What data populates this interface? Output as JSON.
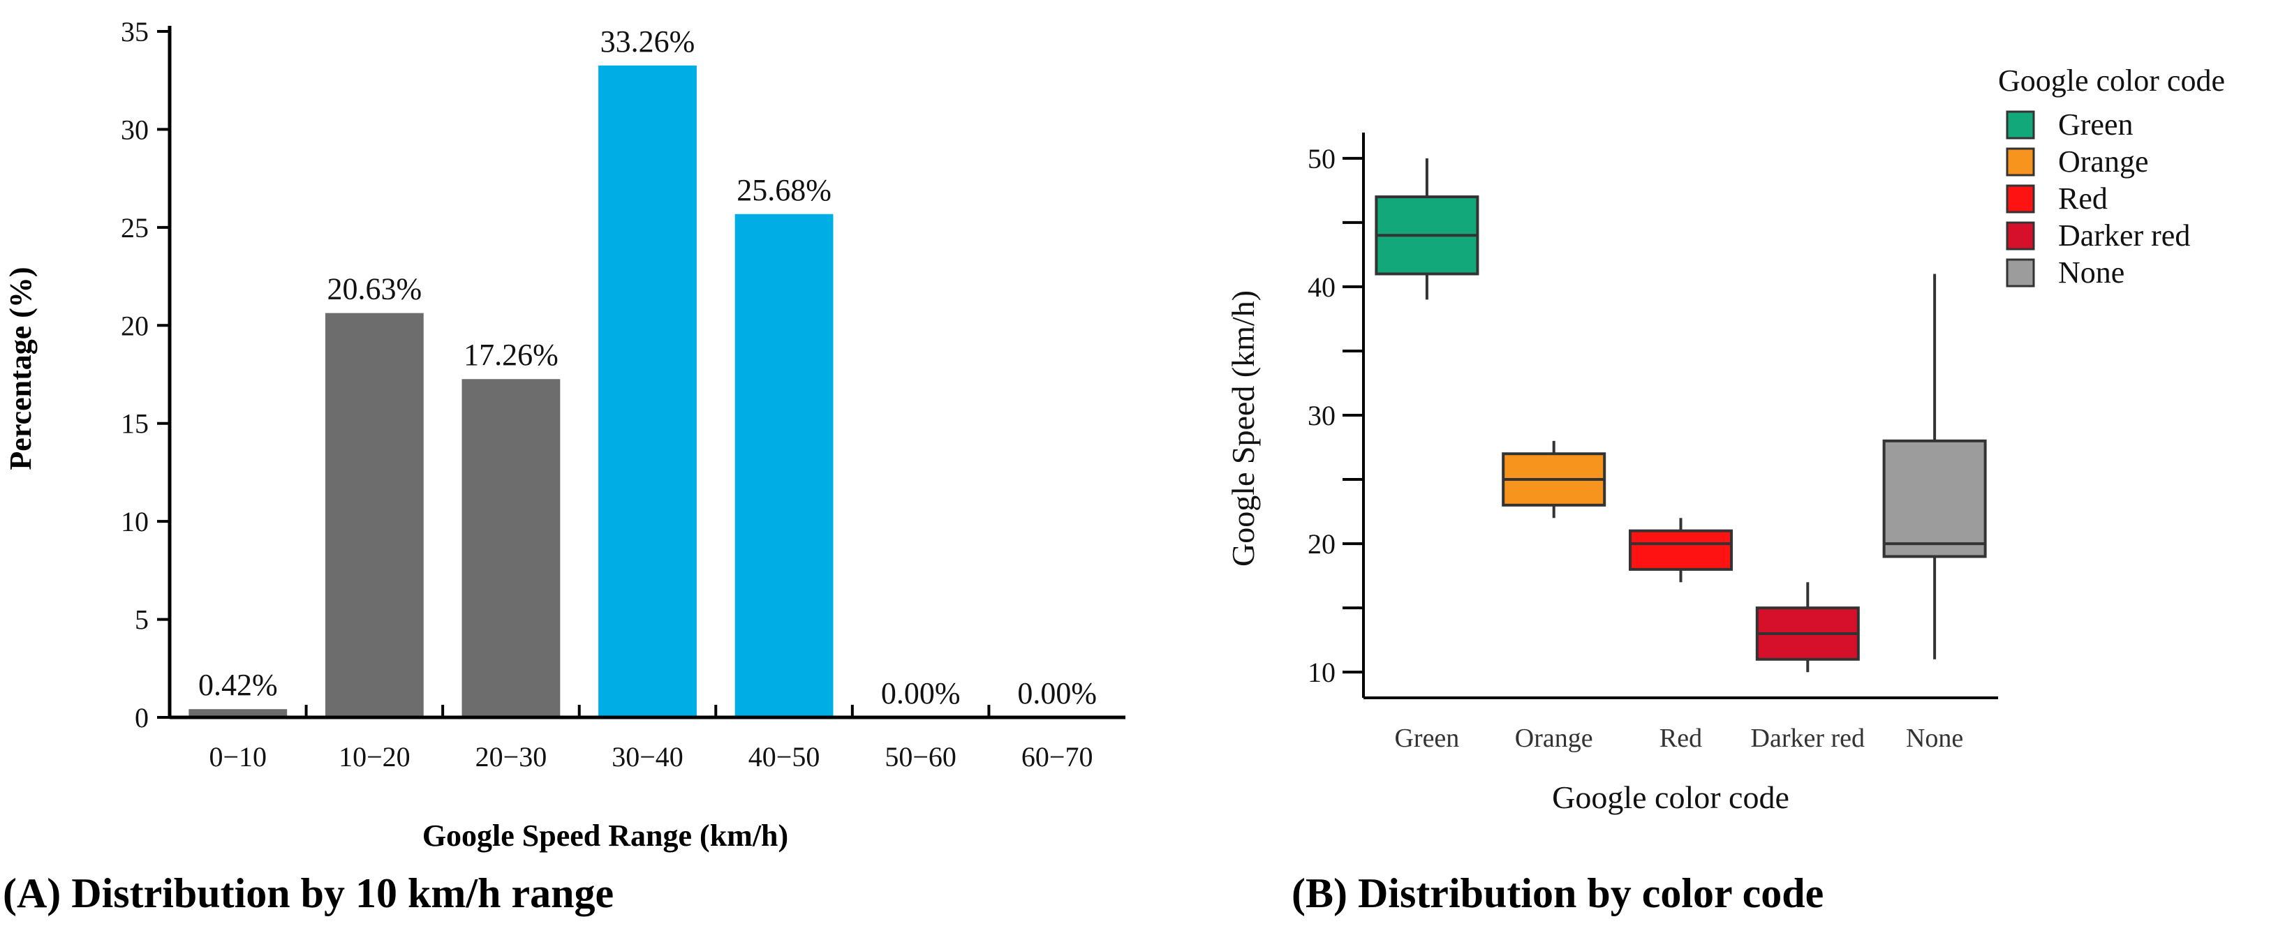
{
  "chart_data": [
    {
      "type": "bar",
      "categories": [
        "0−10",
        "10−20",
        "20−30",
        "30−40",
        "40−50",
        "50−60",
        "60−70"
      ],
      "values": [
        0.42,
        20.63,
        17.26,
        33.26,
        25.68,
        0.0,
        0.0
      ],
      "labels": [
        "0.42%",
        "20.63%",
        "17.26%",
        "33.26%",
        "25.68%",
        "0.00%",
        "0.00%"
      ],
      "bar_colors": [
        "#6d6d6d",
        "#6d6d6d",
        "#6d6d6d",
        "#00aee6",
        "#00aee6",
        "#6d6d6d",
        "#6d6d6d"
      ],
      "xlabel": "Google Speed Range (km/h)",
      "ylabel": "Percentage (%)",
      "ylim": [
        0,
        35
      ],
      "yticks": [
        0,
        5,
        10,
        15,
        20,
        25,
        30,
        35
      ],
      "caption": "(A) Distribution by 10 km/h range"
    },
    {
      "type": "box",
      "categories": [
        "Green",
        "Orange",
        "Red",
        "Darker red",
        "None"
      ],
      "boxes": [
        {
          "name": "Green",
          "min": 39,
          "q1": 41,
          "median": 44,
          "q3": 47,
          "max": 50,
          "color": "#13a87a"
        },
        {
          "name": "Orange",
          "min": 22,
          "q1": 23,
          "median": 25,
          "q3": 27,
          "max": 28,
          "color": "#f7941d"
        },
        {
          "name": "Red",
          "min": 17,
          "q1": 18,
          "median": 20,
          "q3": 21,
          "max": 22,
          "color": "#ff1212"
        },
        {
          "name": "Darker red",
          "min": 10,
          "q1": 11,
          "median": 13,
          "q3": 15,
          "max": 17,
          "color": "#d6102a"
        },
        {
          "name": "None",
          "min": 11,
          "q1": 19,
          "median": 20,
          "q3": 28,
          "max": 41,
          "color": "#9c9c9c"
        }
      ],
      "xlabel": "Google color code",
      "ylabel": "Google Speed (km/h)",
      "ylim": [
        8,
        52
      ],
      "yticks": [
        10,
        20,
        30,
        40,
        50
      ],
      "minor_yticks": [
        15,
        25,
        35,
        45
      ],
      "legend_title": "Google color code",
      "legend": [
        "Green",
        "Orange",
        "Red",
        "Darker red",
        "None"
      ],
      "legend_position": "top-right",
      "caption": "(B) Distribution by color code"
    }
  ]
}
